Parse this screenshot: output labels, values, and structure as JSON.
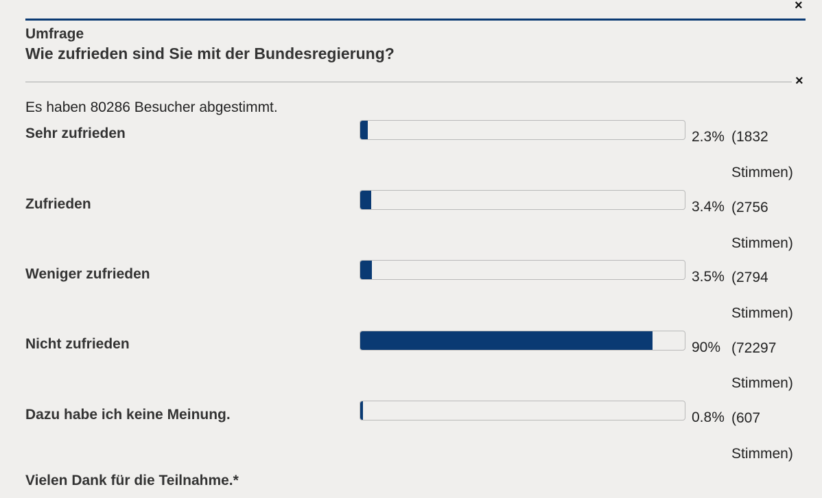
{
  "poll": {
    "close_symbol": "×",
    "eyebrow": "Umfrage",
    "question": "Wie zufrieden sind Sie mit der Bundesregierung?",
    "total_text": "Es haben 80286 Besucher abgestimmt.",
    "bar_color": "#0a3a73",
    "options": [
      {
        "label": "Sehr zufrieden",
        "fraction": 0.023,
        "percent": "2.3%",
        "count": "(1832",
        "count_suffix": "Stimmen)"
      },
      {
        "label": "Zufrieden",
        "fraction": 0.034,
        "percent": "3.4%",
        "count": "(2756",
        "count_suffix": "Stimmen)"
      },
      {
        "label": "Weniger zufrieden",
        "fraction": 0.035,
        "percent": "3.5%",
        "count": "(2794",
        "count_suffix": "Stimmen)"
      },
      {
        "label": "Nicht zufrieden",
        "fraction": 0.9,
        "percent": "90%",
        "count": "(72297",
        "count_suffix": "Stimmen)"
      },
      {
        "label": "Dazu habe ich keine Meinung.",
        "fraction": 0.008,
        "percent": "0.8%",
        "count": "(607",
        "count_suffix": "Stimmen)"
      }
    ],
    "thanks": "Vielen Dank für die Teilnahme.*"
  }
}
